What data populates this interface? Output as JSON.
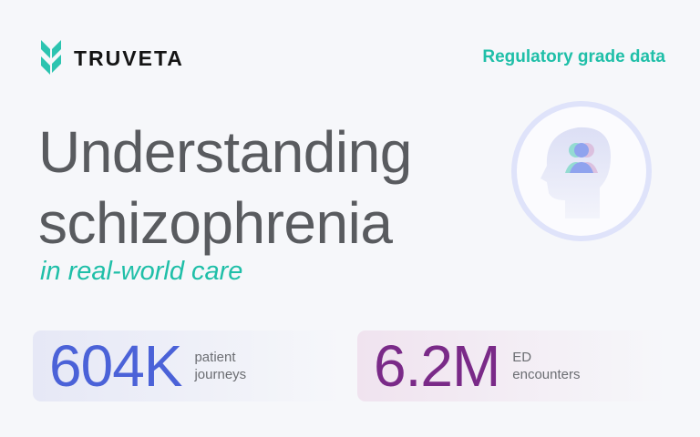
{
  "brand": {
    "name": "TRUVETA",
    "logo_color": "#2cc4b0"
  },
  "tagline": "Regulatory grade data",
  "title": {
    "line1": "Understanding",
    "line2": "schizophrenia",
    "subtitle": "in real-world care"
  },
  "illustration": {
    "icon": "head-with-people-icon"
  },
  "stats": [
    {
      "value": "604K",
      "label_line1": "patient",
      "label_line2": "journeys",
      "color": "#4b62d8"
    },
    {
      "value": "6.2M",
      "label_line1": "ED",
      "label_line2": "encounters",
      "color": "#7a2a88"
    }
  ]
}
